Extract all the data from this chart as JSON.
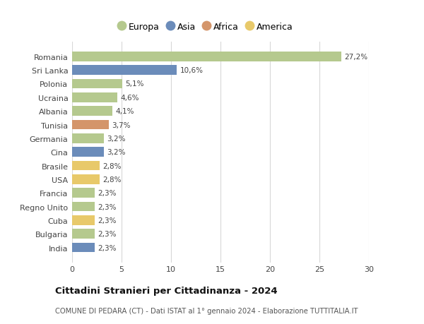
{
  "countries": [
    "Romania",
    "Sri Lanka",
    "Polonia",
    "Ucraina",
    "Albania",
    "Tunisia",
    "Germania",
    "Cina",
    "Brasile",
    "USA",
    "Francia",
    "Regno Unito",
    "Cuba",
    "Bulgaria",
    "India"
  ],
  "values": [
    27.2,
    10.6,
    5.1,
    4.6,
    4.1,
    3.7,
    3.2,
    3.2,
    2.8,
    2.8,
    2.3,
    2.3,
    2.3,
    2.3,
    2.3
  ],
  "labels": [
    "27,2%",
    "10,6%",
    "5,1%",
    "4,6%",
    "4,1%",
    "3,7%",
    "3,2%",
    "3,2%",
    "2,8%",
    "2,8%",
    "2,3%",
    "2,3%",
    "2,3%",
    "2,3%",
    "2,3%"
  ],
  "continents": [
    "Europa",
    "Asia",
    "Europa",
    "Europa",
    "Europa",
    "Africa",
    "Europa",
    "Asia",
    "America",
    "America",
    "Europa",
    "Europa",
    "America",
    "Europa",
    "Asia"
  ],
  "colors": {
    "Europa": "#b5c98e",
    "Asia": "#6b8cba",
    "Africa": "#d4956a",
    "America": "#e8c96a"
  },
  "legend_labels": [
    "Europa",
    "Asia",
    "Africa",
    "America"
  ],
  "title": "Cittadini Stranieri per Cittadinanza - 2024",
  "subtitle": "COMUNE DI PEDARA (CT) - Dati ISTAT al 1° gennaio 2024 - Elaborazione TUTTITALIA.IT",
  "xlim": [
    0,
    30
  ],
  "xticks": [
    0,
    5,
    10,
    15,
    20,
    25,
    30
  ],
  "background_color": "#ffffff",
  "grid_color": "#d8d8d8"
}
